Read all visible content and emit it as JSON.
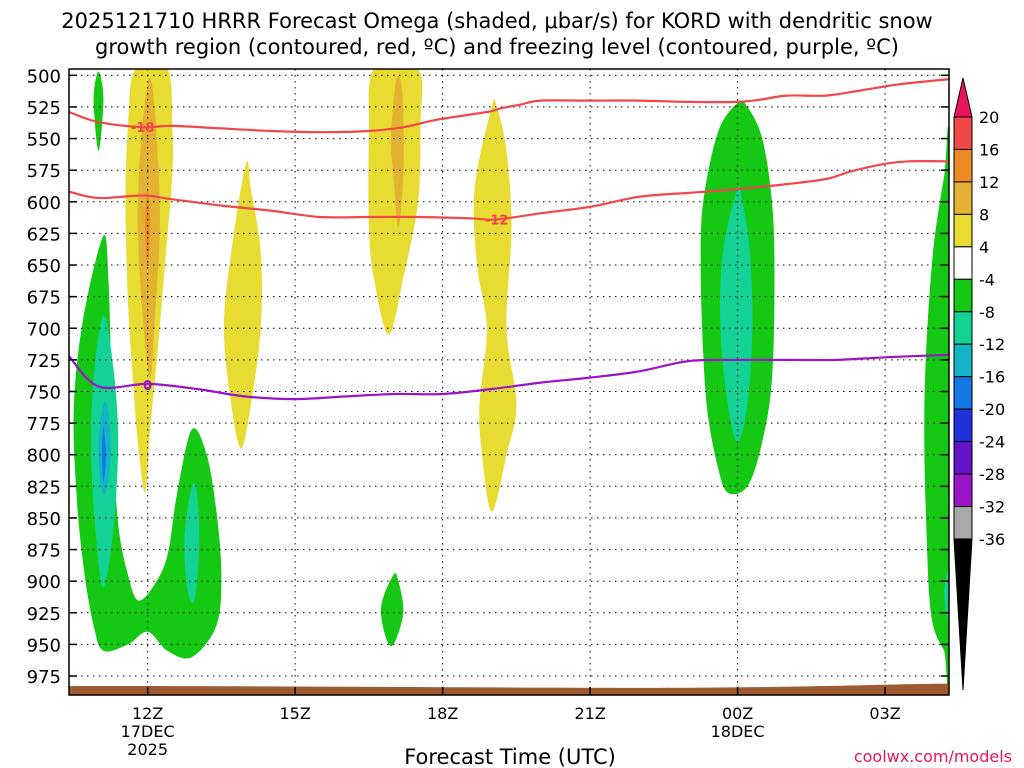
{
  "chart_data": {
    "type": "heatmap",
    "title_line1": "2025121710 HRRR Forecast Omega (shaded, μbar/s) for KORD with dendritic snow",
    "title_line2": "growth region (contoured, red, ºC) and freezing level (contoured, purple, ºC)",
    "xlabel": "Forecast Time (UTC)",
    "watermark": "coolwx.com/models",
    "y_axis": {
      "unit": "hPa",
      "range": [
        990,
        495
      ],
      "ticks": [
        500,
        525,
        550,
        575,
        600,
        625,
        650,
        675,
        700,
        725,
        750,
        775,
        800,
        825,
        850,
        875,
        900,
        925,
        950,
        975
      ]
    },
    "x_axis": {
      "unit": "forecast hour from 2025121710",
      "range": [
        0.4,
        18.3
      ],
      "ticks": [
        {
          "hour": 2,
          "label": "12Z",
          "sub1": "17DEC",
          "sub2": "2025"
        },
        {
          "hour": 5,
          "label": "15Z",
          "sub1": "",
          "sub2": ""
        },
        {
          "hour": 8,
          "label": "18Z",
          "sub1": "",
          "sub2": ""
        },
        {
          "hour": 11,
          "label": "21Z",
          "sub1": "",
          "sub2": ""
        },
        {
          "hour": 14,
          "label": "00Z",
          "sub1": "18DEC",
          "sub2": ""
        },
        {
          "hour": 17,
          "label": "03Z",
          "sub1": "",
          "sub2": ""
        }
      ]
    },
    "colorbar": {
      "labels": [
        "20",
        "16",
        "12",
        "8",
        "4",
        "-4",
        "-8",
        "-12",
        "-16",
        "-20",
        "-24",
        "-28",
        "-32",
        "-36"
      ],
      "colors": [
        "#e8155e",
        "#f04848",
        "#ec8a26",
        "#e4b232",
        "#e8dc32",
        "#ffffff",
        "#14c814",
        "#14d296",
        "#14b4c8",
        "#1478e6",
        "#1e32dc",
        "#6414c8",
        "#9a14c8",
        "#a8a8a8",
        "#000000"
      ]
    },
    "shaded_regions": [
      {
        "color": "#14c814",
        "pts": [
          [
            0.9,
            519
          ],
          [
            1.0,
            497
          ],
          [
            1.1,
            519
          ],
          [
            1.0,
            560
          ]
        ]
      },
      {
        "color": "#14c814",
        "pts": [
          [
            1.1,
            627
          ],
          [
            0.7,
            690
          ],
          [
            0.5,
            760
          ],
          [
            0.55,
            830
          ],
          [
            0.7,
            890
          ],
          [
            0.9,
            935
          ],
          [
            1.1,
            955
          ],
          [
            1.6,
            950
          ],
          [
            2.0,
            940
          ],
          [
            2.4,
            955
          ],
          [
            2.9,
            960
          ],
          [
            3.4,
            935
          ],
          [
            3.5,
            895
          ],
          [
            3.4,
            845
          ],
          [
            3.2,
            800
          ],
          [
            2.9,
            780
          ],
          [
            2.6,
            830
          ],
          [
            2.4,
            880
          ],
          [
            2.1,
            905
          ],
          [
            1.8,
            915
          ],
          [
            1.6,
            895
          ],
          [
            1.4,
            855
          ],
          [
            1.3,
            790
          ],
          [
            1.25,
            720
          ],
          [
            1.2,
            660
          ]
        ]
      },
      {
        "color": "#14d296",
        "pts": [
          [
            1.1,
            690
          ],
          [
            0.9,
            740
          ],
          [
            0.85,
            800
          ],
          [
            0.95,
            865
          ],
          [
            1.1,
            905
          ],
          [
            1.3,
            860
          ],
          [
            1.4,
            790
          ],
          [
            1.3,
            730
          ]
        ]
      },
      {
        "color": "#14b4c8",
        "pts": [
          [
            1.1,
            760
          ],
          [
            1.0,
            790
          ],
          [
            1.05,
            825
          ],
          [
            1.15,
            830
          ],
          [
            1.25,
            800
          ],
          [
            1.2,
            765
          ]
        ]
      },
      {
        "color": "#1478e6",
        "pts": [
          [
            1.1,
            778
          ],
          [
            1.07,
            800
          ],
          [
            1.1,
            822
          ],
          [
            1.15,
            800
          ]
        ]
      },
      {
        "color": "#14d296",
        "pts": [
          [
            2.9,
            825
          ],
          [
            2.75,
            865
          ],
          [
            2.8,
            905
          ],
          [
            2.95,
            915
          ],
          [
            3.05,
            870
          ],
          [
            3.0,
            830
          ]
        ]
      },
      {
        "color": "#14c814",
        "pts": [
          [
            7.0,
            895
          ],
          [
            6.75,
            920
          ],
          [
            6.85,
            945
          ],
          [
            7.0,
            950
          ],
          [
            7.2,
            925
          ],
          [
            7.1,
            900
          ]
        ]
      },
      {
        "color": "#14c814",
        "pts": [
          [
            14.0,
            522
          ],
          [
            13.6,
            545
          ],
          [
            13.3,
            600
          ],
          [
            13.25,
            650
          ],
          [
            13.3,
            720
          ],
          [
            13.4,
            770
          ],
          [
            13.6,
            810
          ],
          [
            13.8,
            830
          ],
          [
            14.2,
            825
          ],
          [
            14.5,
            790
          ],
          [
            14.7,
            740
          ],
          [
            14.75,
            660
          ],
          [
            14.7,
            600
          ],
          [
            14.5,
            550
          ],
          [
            14.2,
            525
          ]
        ]
      },
      {
        "color": "#14d296",
        "pts": [
          [
            14.0,
            590
          ],
          [
            13.7,
            640
          ],
          [
            13.65,
            700
          ],
          [
            13.8,
            760
          ],
          [
            14.0,
            790
          ],
          [
            14.2,
            760
          ],
          [
            14.3,
            700
          ],
          [
            14.25,
            640
          ],
          [
            14.1,
            600
          ]
        ]
      },
      {
        "color": "#14c814",
        "pts": [
          [
            18.3,
            568
          ],
          [
            18.2,
            580
          ],
          [
            17.95,
            650
          ],
          [
            17.8,
            760
          ],
          [
            17.85,
            870
          ],
          [
            17.95,
            930
          ],
          [
            18.2,
            955
          ],
          [
            18.3,
            960
          ]
        ]
      },
      {
        "color": "#14d296",
        "pts": [
          [
            18.3,
            890
          ],
          [
            18.2,
            910
          ],
          [
            18.3,
            930
          ]
        ]
      },
      {
        "color": "#e8dc32",
        "pts": [
          [
            1.75,
            495
          ],
          [
            1.6,
            540
          ],
          [
            1.55,
            600
          ],
          [
            1.6,
            680
          ],
          [
            1.7,
            740
          ],
          [
            1.8,
            790
          ],
          [
            1.95,
            830
          ],
          [
            2.05,
            780
          ],
          [
            2.2,
            720
          ],
          [
            2.35,
            650
          ],
          [
            2.5,
            580
          ],
          [
            2.5,
            540
          ],
          [
            2.4,
            495
          ]
        ]
      },
      {
        "color": "#e4b232",
        "pts": [
          [
            2.0,
            507
          ],
          [
            1.85,
            560
          ],
          [
            1.8,
            620
          ],
          [
            1.9,
            690
          ],
          [
            2.05,
            740
          ],
          [
            2.15,
            690
          ],
          [
            2.25,
            620
          ],
          [
            2.2,
            560
          ],
          [
            2.1,
            510
          ]
        ]
      },
      {
        "color": "#ec8a26",
        "pts": [
          [
            2.0,
            590
          ],
          [
            1.95,
            620
          ],
          [
            2.0,
            650
          ],
          [
            2.05,
            620
          ]
        ]
      },
      {
        "color": "#e8dc32",
        "pts": [
          [
            4.0,
            570
          ],
          [
            3.7,
            640
          ],
          [
            3.55,
            700
          ],
          [
            3.7,
            760
          ],
          [
            3.9,
            795
          ],
          [
            4.1,
            760
          ],
          [
            4.3,
            700
          ],
          [
            4.3,
            640
          ],
          [
            4.1,
            590
          ]
        ]
      },
      {
        "color": "#e8dc32",
        "pts": [
          [
            6.6,
            495
          ],
          [
            6.5,
            550
          ],
          [
            6.5,
            620
          ],
          [
            6.6,
            660
          ],
          [
            6.9,
            705
          ],
          [
            7.2,
            660
          ],
          [
            7.5,
            600
          ],
          [
            7.55,
            540
          ],
          [
            7.5,
            495
          ]
        ]
      },
      {
        "color": "#e4b232",
        "pts": [
          [
            7.05,
            505
          ],
          [
            6.95,
            550
          ],
          [
            7.0,
            580
          ],
          [
            7.1,
            620
          ],
          [
            7.2,
            580
          ],
          [
            7.2,
            530
          ],
          [
            7.15,
            505
          ]
        ]
      },
      {
        "color": "#e8dc32",
        "pts": [
          [
            9.0,
            525
          ],
          [
            8.65,
            590
          ],
          [
            8.7,
            650
          ],
          [
            8.9,
            700
          ],
          [
            8.75,
            760
          ],
          [
            8.8,
            800
          ],
          [
            9.0,
            845
          ],
          [
            9.3,
            800
          ],
          [
            9.5,
            760
          ],
          [
            9.3,
            700
          ],
          [
            9.4,
            620
          ],
          [
            9.3,
            560
          ],
          [
            9.1,
            525
          ]
        ]
      }
    ],
    "contours": [
      {
        "name": "dgz-minus18",
        "color": "#f04848",
        "label": "-18",
        "label_at": [
          1.9,
          541
        ],
        "pts": [
          [
            0.4,
            529
          ],
          [
            1.0,
            537
          ],
          [
            1.9,
            541
          ],
          [
            2.5,
            540
          ],
          [
            3.5,
            542
          ],
          [
            4.5,
            544
          ],
          [
            5.5,
            545
          ],
          [
            6.5,
            544
          ],
          [
            7.2,
            541
          ],
          [
            7.9,
            535
          ],
          [
            8.9,
            529
          ],
          [
            9.2,
            526
          ],
          [
            9.6,
            523
          ],
          [
            10.0,
            520
          ],
          [
            11.0,
            520
          ],
          [
            12.0,
            520
          ],
          [
            13.0,
            521
          ],
          [
            14.0,
            521
          ],
          [
            14.5,
            519
          ],
          [
            15.0,
            516
          ],
          [
            15.8,
            516
          ],
          [
            16.5,
            512
          ],
          [
            17.3,
            507
          ],
          [
            18.3,
            503
          ]
        ]
      },
      {
        "name": "dgz-minus12",
        "color": "#f04848",
        "label": "-12",
        "label_at": [
          9.1,
          614
        ],
        "pts": [
          [
            0.4,
            592
          ],
          [
            1.0,
            597
          ],
          [
            1.9,
            595
          ],
          [
            2.5,
            598
          ],
          [
            3.5,
            603
          ],
          [
            4.5,
            607
          ],
          [
            5.5,
            612
          ],
          [
            6.5,
            612
          ],
          [
            7.5,
            612
          ],
          [
            8.5,
            613
          ],
          [
            9.1,
            614
          ],
          [
            10.0,
            609
          ],
          [
            11.0,
            604
          ],
          [
            12.0,
            596
          ],
          [
            13.0,
            593
          ],
          [
            14.0,
            590
          ],
          [
            15.0,
            586
          ],
          [
            15.8,
            582
          ],
          [
            16.3,
            576
          ],
          [
            17.0,
            570
          ],
          [
            17.5,
            568
          ],
          [
            18.3,
            568
          ]
        ]
      },
      {
        "name": "freezing-level",
        "color": "#9a14c8",
        "label": "0",
        "label_at": [
          2.0,
          745
        ],
        "pts": [
          [
            0.4,
            722
          ],
          [
            1.0,
            746
          ],
          [
            2.0,
            744
          ],
          [
            3.0,
            748
          ],
          [
            4.0,
            754
          ],
          [
            5.0,
            756
          ],
          [
            6.0,
            754
          ],
          [
            7.0,
            752
          ],
          [
            8.0,
            752
          ],
          [
            9.0,
            748
          ],
          [
            10.0,
            743
          ],
          [
            11.0,
            739
          ],
          [
            12.0,
            734
          ],
          [
            13.0,
            726
          ],
          [
            14.0,
            725
          ],
          [
            15.0,
            725
          ],
          [
            16.0,
            725
          ],
          [
            17.0,
            723
          ],
          [
            18.3,
            721
          ]
        ]
      }
    ],
    "terrain": {
      "color": "#a05a32",
      "surface_hpa": 983
    }
  }
}
